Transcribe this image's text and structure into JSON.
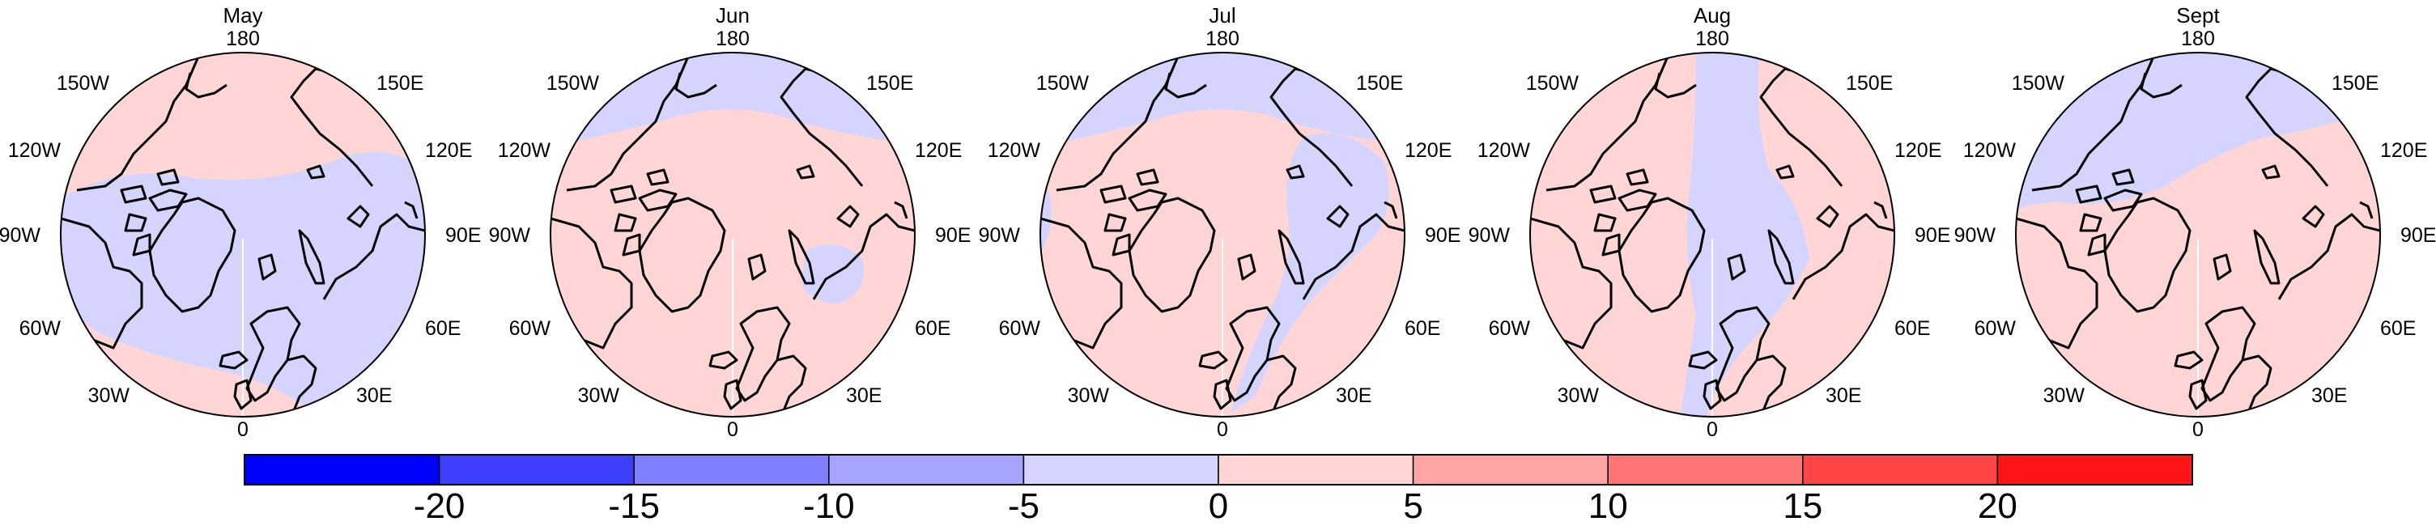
{
  "panels": [
    {
      "title": "May",
      "dominant": "negative",
      "regions": [
        "neg-central",
        "pos-rim"
      ]
    },
    {
      "title": "Jun",
      "dominant": "positive",
      "regions": [
        "neg-pacific",
        "neg-barents"
      ]
    },
    {
      "title": "Jul",
      "dominant": "positive",
      "regions": [
        "neg-pacific",
        "neg-atlantic",
        "neg-eurasia"
      ]
    },
    {
      "title": "Aug",
      "dominant": "positive",
      "regions": [
        "neg-transpolar"
      ]
    },
    {
      "title": "Sept",
      "dominant": "positive",
      "regions": [
        "neg-pacific-large"
      ]
    }
  ],
  "longitude_labels": {
    "top": "180",
    "bottom": "0",
    "top_left": "150W",
    "top_right": "150E",
    "upper_left": "120W",
    "upper_right": "120E",
    "mid_left": "90W",
    "mid_right": "90E",
    "lower_left": "60W",
    "lower_right": "60E",
    "bottom_left": "30W",
    "bottom_right": "30E"
  },
  "colorbar": {
    "labels": [
      "-20",
      "-15",
      "-10",
      "-5",
      "0",
      "5",
      "10",
      "15",
      "20"
    ],
    "colors": [
      "#0000ff",
      "#3f3fff",
      "#7f7fff",
      "#a5a5ff",
      "#d4d4ff",
      "#ffd5d5",
      "#ffa5a5",
      "#ff7575",
      "#ff4545",
      "#ff1515"
    ]
  },
  "colors": {
    "negative": "#d4d4ff",
    "positive": "#ffd5d5",
    "coast": "#000000"
  }
}
